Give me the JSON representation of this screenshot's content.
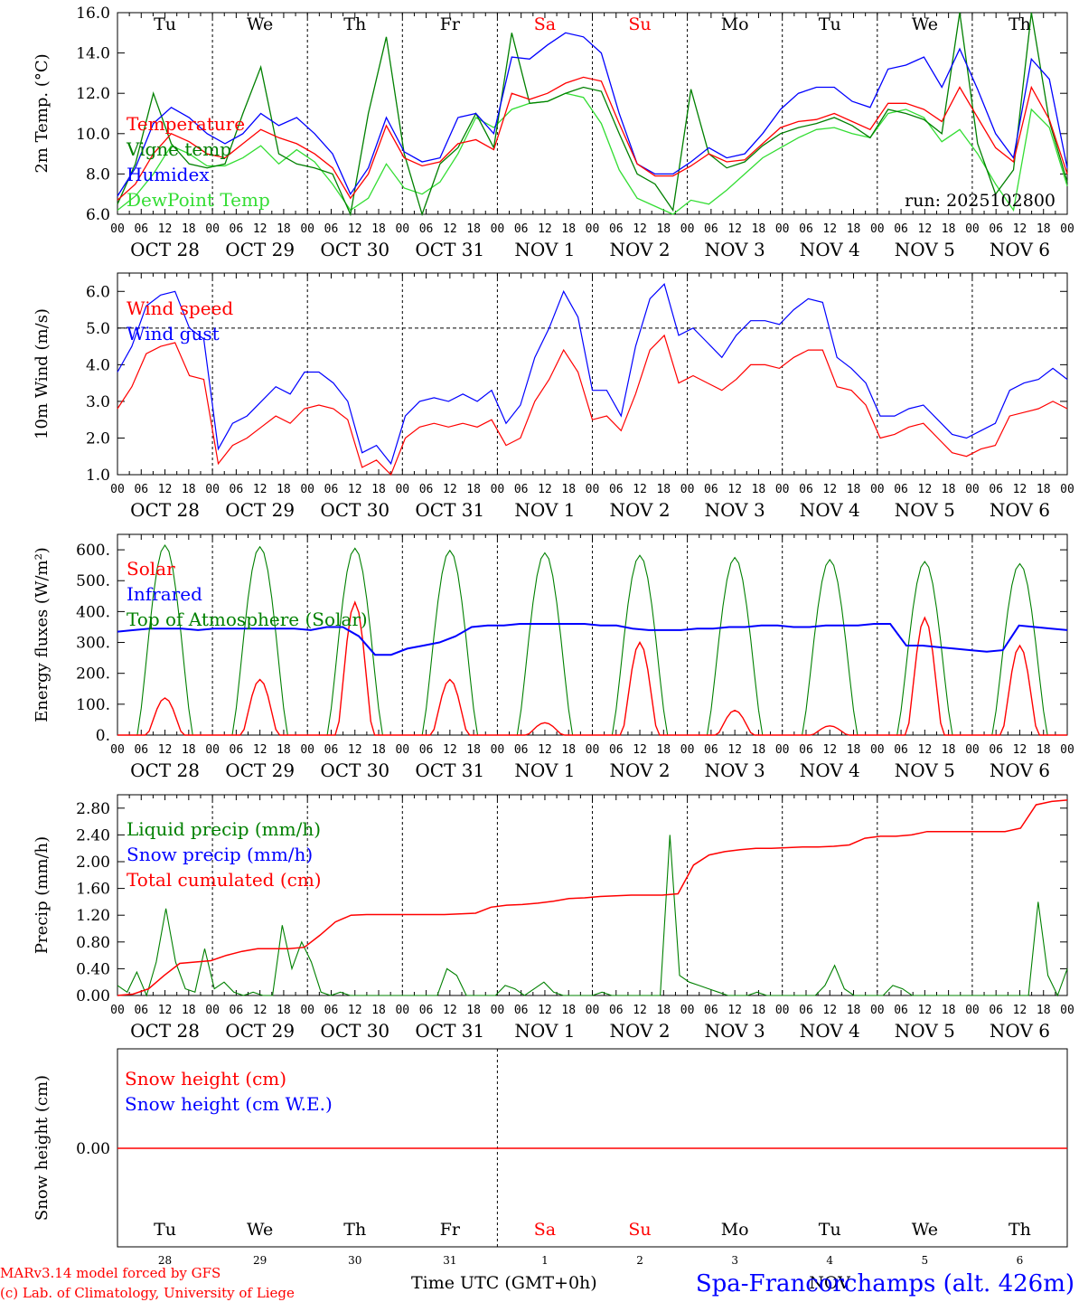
{
  "x_axis": {
    "hour_ticks": [
      "00",
      "06",
      "12",
      "18"
    ],
    "dates": [
      "OCT 28",
      "OCT 29",
      "OCT 30",
      "OCT 31",
      "NOV  1",
      "NOV  2",
      "NOV  3",
      "NOV  4",
      "NOV  5",
      "NOV  6"
    ],
    "weekdays": [
      "Tu",
      "We",
      "Th",
      "Fr",
      "Sa",
      "Su",
      "Mo",
      "Tu",
      "We",
      "Th"
    ],
    "weekend_color": "#ff0000",
    "weekday_color": "#000000",
    "weekend_index": [
      4,
      5
    ],
    "bottom_days": [
      "28",
      "29",
      "30",
      "31",
      "1",
      "2",
      "3",
      "4",
      "5",
      "6"
    ],
    "bottom_month": "NOV",
    "bottom_label": "Time UTC (GMT+0h)"
  },
  "footer": {
    "credit_1": "MARv3.14 model forced by GFS",
    "credit_2": "(c) Lab. of Climatology, University of Liege",
    "location": "Spa-Francorchamps (alt. 426m)"
  },
  "colors": {
    "red": "#ff0000",
    "green": "#008000",
    "blue": "#0000ff",
    "light_green": "#33dd33",
    "frame": "#000000"
  },
  "chart_data": [
    {
      "type": "line",
      "ylabel": "2m Temp. (°C)",
      "ylim": [
        6,
        16
      ],
      "yticks": [
        "6.0",
        "8.0",
        "10.0",
        "12.0",
        "14.0",
        "16.0"
      ],
      "annotation": "run: 2025102800",
      "series": [
        {
          "name": "Temperature",
          "color": "red",
          "values": [
            6.7,
            7.5,
            9.0,
            10.0,
            9.6,
            9.0,
            8.8,
            9.5,
            10.2,
            9.8,
            9.5,
            9.0,
            8.3,
            6.8,
            8.0,
            10.4,
            8.8,
            8.4,
            8.6,
            9.5,
            9.7,
            9.2,
            12.0,
            11.7,
            12.0,
            12.5,
            12.8,
            12.6,
            10.5,
            8.5,
            7.9,
            7.9,
            8.4,
            9.0,
            8.6,
            8.7,
            9.5,
            10.3,
            10.6,
            10.7,
            11.0,
            10.6,
            10.2,
            11.5,
            11.5,
            11.2,
            10.6,
            12.3,
            10.8,
            9.3,
            8.6,
            12.3,
            10.7,
            8.0
          ]
        },
        {
          "name": "Vigne temp",
          "color": "green",
          "values": [
            6.5,
            8.5,
            12.0,
            9.5,
            8.5,
            8.3,
            8.5,
            11.0,
            13.3,
            9.0,
            8.5,
            8.3,
            8.0,
            6.0,
            11.0,
            14.8,
            9.0,
            6.0,
            8.5,
            9.3,
            11.0,
            9.3,
            15.0,
            11.5,
            11.6,
            12.0,
            12.3,
            12.1,
            10.0,
            8.0,
            7.5,
            6.2,
            12.2,
            9.0,
            8.3,
            8.6,
            9.4,
            10.0,
            10.3,
            10.5,
            10.8,
            10.4,
            9.8,
            11.2,
            11.0,
            10.7,
            10.0,
            16.0,
            9.5,
            7.0,
            8.2,
            16.0,
            10.6,
            7.6
          ]
        },
        {
          "name": "Humidex",
          "color": "blue",
          "values": [
            6.9,
            8.3,
            10.5,
            11.3,
            10.8,
            10.0,
            9.5,
            10.0,
            11.0,
            10.4,
            10.8,
            10.0,
            9.0,
            7.0,
            8.3,
            10.8,
            9.1,
            8.6,
            8.8,
            10.8,
            11.0,
            10.0,
            13.8,
            13.7,
            14.4,
            15.0,
            14.8,
            14.0,
            11.0,
            8.5,
            8.0,
            8.0,
            8.6,
            9.3,
            8.8,
            9.0,
            10.0,
            11.2,
            12.0,
            12.3,
            12.3,
            11.6,
            11.3,
            13.2,
            13.4,
            13.8,
            12.3,
            14.2,
            12.2,
            10.0,
            8.8,
            13.7,
            12.7,
            8.3
          ]
        },
        {
          "name": "DewPoint Temp",
          "color": "light_green",
          "values": [
            6.2,
            6.9,
            8.0,
            9.4,
            9.0,
            8.4,
            8.4,
            8.8,
            9.4,
            8.5,
            9.2,
            8.6,
            7.5,
            6.2,
            6.8,
            8.5,
            7.3,
            7.0,
            7.6,
            9.0,
            10.8,
            10.3,
            11.2,
            11.5,
            11.6,
            12.0,
            11.8,
            10.5,
            8.2,
            6.8,
            6.4,
            6.0,
            6.7,
            6.5,
            7.2,
            8.0,
            8.8,
            9.3,
            9.8,
            10.2,
            10.3,
            10.0,
            9.8,
            11.0,
            11.2,
            10.8,
            9.6,
            10.2,
            9.0,
            7.5,
            6.2,
            11.2,
            10.3,
            7.4
          ]
        }
      ]
    },
    {
      "type": "line",
      "ylabel": "10m Wind (m/s)",
      "ylim": [
        1,
        6.5
      ],
      "yticks": [
        "1.0",
        "2.0",
        "3.0",
        "4.0",
        "5.0",
        "6.0"
      ],
      "reference_line": 5.0,
      "series": [
        {
          "name": "Wind speed",
          "color": "red",
          "values": [
            2.8,
            3.4,
            4.3,
            4.5,
            4.6,
            3.7,
            3.6,
            1.3,
            1.8,
            2.0,
            2.3,
            2.6,
            2.4,
            2.8,
            2.9,
            2.8,
            2.5,
            1.2,
            1.4,
            1.0,
            2.0,
            2.3,
            2.4,
            2.3,
            2.4,
            2.3,
            2.5,
            1.8,
            2.0,
            3.0,
            3.6,
            4.4,
            3.8,
            2.5,
            2.6,
            2.2,
            3.2,
            4.4,
            4.8,
            3.5,
            3.7,
            3.5,
            3.3,
            3.6,
            4.0,
            4.0,
            3.9,
            4.2,
            4.4,
            4.4,
            3.4,
            3.3,
            2.9,
            2.0,
            2.1,
            2.3,
            2.4,
            2.0,
            1.6,
            1.5,
            1.7,
            1.8,
            2.6,
            2.7,
            2.8,
            3.0,
            2.8
          ]
        },
        {
          "name": "Wind gust",
          "color": "blue",
          "values": [
            3.8,
            4.5,
            5.6,
            5.9,
            6.0,
            5.0,
            4.7,
            1.7,
            2.4,
            2.6,
            3.0,
            3.4,
            3.2,
            3.8,
            3.8,
            3.5,
            3.0,
            1.6,
            1.8,
            1.3,
            2.6,
            3.0,
            3.1,
            3.0,
            3.2,
            3.0,
            3.3,
            2.4,
            2.9,
            4.2,
            5.0,
            6.0,
            5.3,
            3.3,
            3.3,
            2.6,
            4.5,
            5.8,
            6.2,
            4.8,
            5.0,
            4.6,
            4.2,
            4.8,
            5.2,
            5.2,
            5.1,
            5.5,
            5.8,
            5.7,
            4.2,
            3.9,
            3.5,
            2.6,
            2.6,
            2.8,
            2.9,
            2.5,
            2.1,
            2.0,
            2.2,
            2.4,
            3.3,
            3.5,
            3.6,
            3.9,
            3.6
          ]
        }
      ]
    },
    {
      "type": "line",
      "ylabel": "Energy fluxes (W/m²)",
      "ylim": [
        0,
        650
      ],
      "yticks": [
        "0.",
        "100.",
        "200.",
        "300.",
        "400.",
        "500.",
        "600."
      ],
      "series": [
        {
          "name": "Solar",
          "color": "red",
          "peaks": [
            120,
            180,
            430,
            180,
            40,
            300,
            80,
            30,
            380,
            290
          ]
        },
        {
          "name": "Infrared",
          "color": "blue",
          "values": [
            335,
            340,
            345,
            345,
            345,
            340,
            345,
            345,
            345,
            345,
            345,
            345,
            340,
            350,
            350,
            320,
            260,
            260,
            280,
            290,
            300,
            320,
            350,
            355,
            355,
            360,
            360,
            360,
            360,
            360,
            355,
            355,
            345,
            340,
            340,
            340,
            345,
            345,
            350,
            350,
            355,
            355,
            350,
            350,
            355,
            355,
            355,
            360,
            360,
            290,
            290,
            285,
            280,
            275,
            270,
            275,
            355,
            350,
            345,
            340
          ]
        },
        {
          "name": "Top of Atmosphere (Solar)",
          "color": "green",
          "peaks": [
            615,
            610,
            605,
            598,
            590,
            582,
            575,
            568,
            562,
            555
          ]
        }
      ]
    },
    {
      "type": "line",
      "ylabel": "Precip (mm/h)",
      "ylim": [
        0,
        3.0
      ],
      "yticks": [
        "0.00",
        "0.40",
        "0.80",
        "1.20",
        "1.60",
        "2.00",
        "2.40",
        "2.80"
      ],
      "series": [
        {
          "name": "Liquid precip (mm/h)",
          "color": "green",
          "values": [
            0.15,
            0.05,
            0.35,
            0.0,
            0.5,
            1.3,
            0.5,
            0.1,
            0.05,
            0.7,
            0.1,
            0.2,
            0.05,
            0.0,
            0.05,
            0.0,
            0.0,
            1.05,
            0.4,
            0.8,
            0.5,
            0.05,
            0.0,
            0.05,
            0.0,
            0.0,
            0.0,
            0.0,
            0.0,
            0.0,
            0.0,
            0.0,
            0.0,
            0.0,
            0.4,
            0.3,
            0.0,
            0.0,
            0.0,
            0.0,
            0.15,
            0.1,
            0.0,
            0.1,
            0.2,
            0.05,
            0.0,
            0.0,
            0.0,
            0.0,
            0.05,
            0.0,
            0.0,
            0.0,
            0.0,
            0.0,
            0.0,
            2.4,
            0.3,
            0.2,
            0.15,
            0.1,
            0.05,
            0.0,
            0.0,
            0.0,
            0.05,
            0.0,
            0.0,
            0.0,
            0.0,
            0.0,
            0.0,
            0.15,
            0.45,
            0.1,
            0.0,
            0.0,
            0.0,
            0.0,
            0.15,
            0.1,
            0.0,
            0.0,
            0.0,
            0.0,
            0.0,
            0.0,
            0.0,
            0.0,
            0.0,
            0.0,
            0.0,
            0.0,
            0.0,
            1.4,
            0.3,
            0.0,
            0.4
          ]
        },
        {
          "name": "Snow precip (mm/h)",
          "color": "blue",
          "values": []
        },
        {
          "name": "Total cumulated (cm)",
          "color": "red",
          "values": [
            0.0,
            0.02,
            0.1,
            0.3,
            0.48,
            0.5,
            0.52,
            0.6,
            0.66,
            0.7,
            0.7,
            0.7,
            0.72,
            0.9,
            1.1,
            1.2,
            1.21,
            1.21,
            1.21,
            1.21,
            1.21,
            1.21,
            1.22,
            1.23,
            1.32,
            1.35,
            1.36,
            1.38,
            1.41,
            1.45,
            1.46,
            1.48,
            1.49,
            1.5,
            1.5,
            1.5,
            1.52,
            1.95,
            2.1,
            2.15,
            2.18,
            2.2,
            2.2,
            2.21,
            2.22,
            2.22,
            2.23,
            2.25,
            2.35,
            2.38,
            2.38,
            2.4,
            2.45,
            2.45,
            2.45,
            2.45,
            2.45,
            2.45,
            2.5,
            2.85,
            2.9,
            2.92
          ]
        }
      ]
    },
    {
      "type": "line",
      "ylabel": "Snow height (cm)",
      "yticks": [
        "0.00"
      ],
      "series": [
        {
          "name": "Snow height (cm)",
          "color": "red",
          "values": [
            0,
            0
          ]
        },
        {
          "name": "Snow height (cm W.E.)",
          "color": "blue",
          "values": []
        }
      ]
    }
  ]
}
